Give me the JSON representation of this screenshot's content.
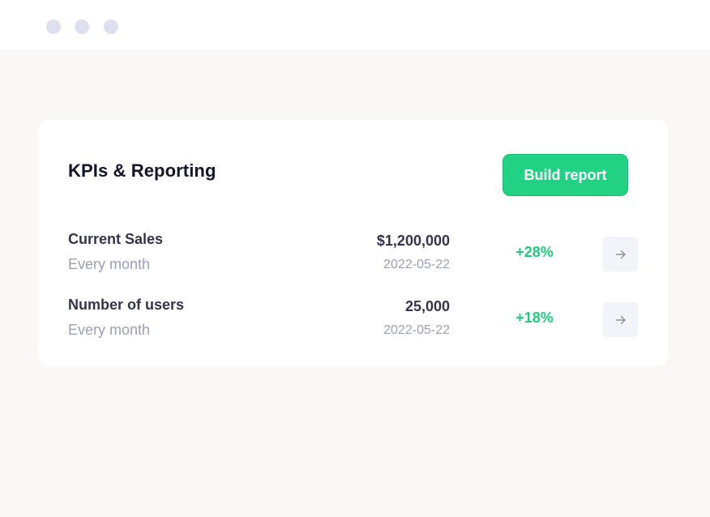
{
  "window": {
    "controls": [
      "window-dot",
      "window-dot",
      "window-dot"
    ]
  },
  "card": {
    "title": "KPIs & Reporting",
    "build_button_label": "Build report"
  },
  "colors": {
    "accent": "#22d183",
    "positive": "#22c97c",
    "title_text": "#14142b",
    "muted_text": "#9c9fb6",
    "background": "#f9f8f4",
    "window_dot": "#dde1ee"
  },
  "kpis": [
    {
      "name": "Current Sales",
      "frequency": "Every month",
      "value": "$1,200,000",
      "date": "2022-05-22",
      "change": "+28%",
      "action_icon": "arrow-right-icon"
    },
    {
      "name": "Number of users",
      "frequency": "Every month",
      "value": "25,000",
      "date": "2022-05-22",
      "change": "+18%",
      "action_icon": "arrow-right-icon"
    }
  ]
}
